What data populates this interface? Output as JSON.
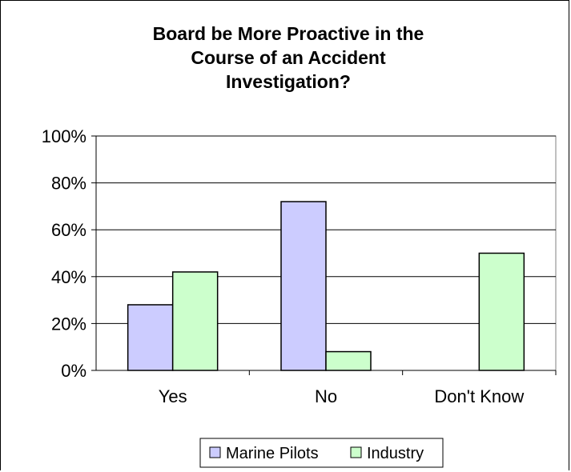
{
  "chart_data": {
    "type": "bar",
    "title_lines": [
      "Board be More Proactive in the",
      "Course of an Accident",
      "Investigation?"
    ],
    "categories": [
      "Yes",
      "No",
      "Don't Know"
    ],
    "series": [
      {
        "name": "Marine Pilots",
        "values": [
          28,
          72,
          0
        ],
        "color": "#ccccff"
      },
      {
        "name": "Industry",
        "values": [
          42,
          8,
          50
        ],
        "color": "#ccffcc"
      }
    ],
    "y_ticks": [
      "0%",
      "20%",
      "40%",
      "60%",
      "80%",
      "100%"
    ],
    "ylim": [
      0,
      100
    ],
    "grid": true,
    "legend_position": "bottom"
  }
}
